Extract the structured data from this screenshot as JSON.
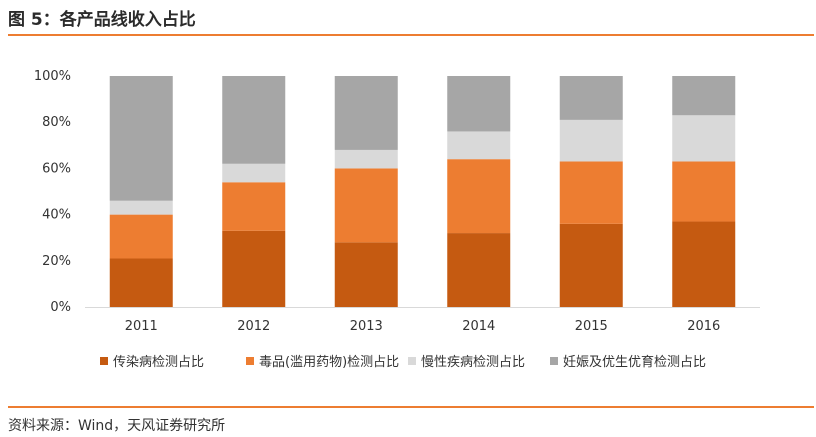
{
  "figure_title": "图 5：各产品线收入占比",
  "source": "资料来源：Wind，天风证券研究所",
  "colors": {
    "accent": "#ed7d31",
    "series": [
      "#c55a11",
      "#ed7d31",
      "#d9d9d9",
      "#a6a6a6"
    ],
    "axis": "#d9d9d9"
  },
  "chart_data": {
    "type": "bar",
    "stacked": true,
    "categories": [
      "2011",
      "2012",
      "2013",
      "2014",
      "2015",
      "2016"
    ],
    "series": [
      {
        "name": "传染病检测占比",
        "values": [
          21,
          33,
          28,
          32,
          36,
          37
        ]
      },
      {
        "name": "毒品(滥用药物)检测占比",
        "values": [
          19,
          21,
          32,
          32,
          27,
          26
        ]
      },
      {
        "name": "慢性疾病检测占比",
        "values": [
          6,
          8,
          8,
          12,
          18,
          20
        ]
      },
      {
        "name": "妊娠及优生优育检测占比",
        "values": [
          54,
          38,
          32,
          24,
          19,
          17
        ]
      }
    ],
    "yticks": [
      "0%",
      "20%",
      "40%",
      "60%",
      "80%",
      "100%"
    ],
    "ylim": [
      0,
      100
    ],
    "grid": false,
    "legend": "bottom"
  }
}
